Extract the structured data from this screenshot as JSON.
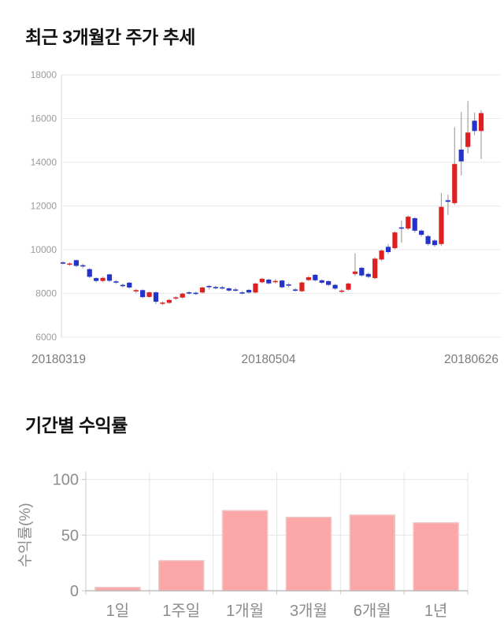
{
  "sections": {
    "price": {
      "title": "최근 3개월간 주가 추세"
    },
    "returns": {
      "title": "기간별 수익률"
    }
  },
  "chart_data": [
    {
      "id": "price-trend-candlestick",
      "type": "candlestick",
      "title": "최근 3개월간 주가 추세",
      "x_tick_labels": [
        "20180319",
        "20180504",
        "20180626"
      ],
      "y_ticks": [
        6000,
        8000,
        10000,
        12000,
        14000,
        16000,
        18000
      ],
      "ylim": [
        6000,
        18000
      ],
      "grid": "horizontal",
      "legend_position": "none",
      "colors": {
        "up": "#e02020",
        "down": "#2433cc",
        "wick": "#a3a3a3",
        "grid": "#e9e9e9",
        "axis": "#d9d9d9",
        "tick": "#9b9b9b",
        "xtick": "#7a7a7a"
      },
      "ohlc_order": [
        "open",
        "close",
        "low",
        "high"
      ],
      "candles": [
        [
          9420,
          9390,
          9330,
          9470
        ],
        [
          9310,
          9370,
          9260,
          9420
        ],
        [
          9520,
          9260,
          9200,
          9550
        ],
        [
          9290,
          9260,
          9150,
          9360
        ],
        [
          9110,
          8760,
          8700,
          9160
        ],
        [
          8700,
          8570,
          8500,
          8740
        ],
        [
          8570,
          8710,
          8510,
          8770
        ],
        [
          8870,
          8580,
          8520,
          8900
        ],
        [
          8550,
          8500,
          8430,
          8610
        ],
        [
          8390,
          8340,
          8270,
          8450
        ],
        [
          8490,
          8270,
          8210,
          8520
        ],
        [
          8090,
          8150,
          8020,
          8210
        ],
        [
          8150,
          7830,
          7780,
          8180
        ],
        [
          7840,
          8050,
          7800,
          8090
        ],
        [
          8050,
          7620,
          7510,
          8080
        ],
        [
          7540,
          7580,
          7460,
          7640
        ],
        [
          7570,
          7700,
          7520,
          7750
        ],
        [
          7770,
          7820,
          7710,
          7870
        ],
        [
          7810,
          7990,
          7760,
          8030
        ],
        [
          8050,
          8010,
          7950,
          8100
        ],
        [
          8030,
          7990,
          7930,
          8080
        ],
        [
          8040,
          8270,
          8000,
          8310
        ],
        [
          8340,
          8310,
          8180,
          8380
        ],
        [
          8290,
          8260,
          8190,
          8350
        ],
        [
          8280,
          8250,
          8180,
          8340
        ],
        [
          8230,
          8130,
          8080,
          8270
        ],
        [
          8180,
          8150,
          8080,
          8260
        ],
        [
          8050,
          8020,
          7960,
          8110
        ],
        [
          8160,
          8040,
          7990,
          8190
        ],
        [
          8040,
          8450,
          8000,
          8490
        ],
        [
          8510,
          8670,
          8460,
          8710
        ],
        [
          8630,
          8460,
          8410,
          8670
        ],
        [
          8540,
          8570,
          8440,
          8660
        ],
        [
          8590,
          8280,
          8230,
          8620
        ],
        [
          8410,
          8380,
          8280,
          8490
        ],
        [
          8180,
          8140,
          8080,
          8240
        ],
        [
          8100,
          8500,
          8060,
          8540
        ],
        [
          8610,
          8740,
          8560,
          8790
        ],
        [
          8850,
          8600,
          8550,
          8880
        ],
        [
          8600,
          8490,
          8430,
          8650
        ],
        [
          8560,
          8390,
          8330,
          8600
        ],
        [
          8390,
          8220,
          8160,
          8430
        ],
        [
          8080,
          8130,
          8020,
          8190
        ],
        [
          8170,
          8450,
          8120,
          8490
        ],
        [
          8890,
          9000,
          8810,
          9830
        ],
        [
          9170,
          8820,
          8760,
          9220
        ],
        [
          8890,
          8760,
          8700,
          8950
        ],
        [
          8700,
          9590,
          8650,
          9650
        ],
        [
          9550,
          9960,
          9480,
          10020
        ],
        [
          10130,
          9890,
          9800,
          10260
        ],
        [
          10070,
          10790,
          10010,
          10850
        ],
        [
          11020,
          10980,
          10320,
          11330
        ],
        [
          10970,
          11510,
          10900,
          11570
        ],
        [
          11440,
          10870,
          10790,
          11500
        ],
        [
          10870,
          10680,
          10600,
          10930
        ],
        [
          10620,
          10260,
          10190,
          10680
        ],
        [
          10420,
          10210,
          10130,
          10480
        ],
        [
          10260,
          11960,
          10170,
          12590
        ],
        [
          12260,
          12190,
          11590,
          12520
        ],
        [
          12130,
          13920,
          12050,
          15600
        ],
        [
          14580,
          14040,
          13400,
          16300
        ],
        [
          14700,
          15360,
          14400,
          16800
        ],
        [
          15900,
          15430,
          15240,
          16270
        ],
        [
          15430,
          16250,
          14150,
          16380
        ]
      ]
    },
    {
      "id": "period-returns-bar",
      "type": "bar",
      "title": "기간별 수익률",
      "ylabel": "수익률(%)",
      "categories": [
        "1일",
        "1주일",
        "1개월",
        "3개월",
        "6개월",
        "1년"
      ],
      "values": [
        3,
        27,
        72,
        66,
        68,
        61
      ],
      "y_ticks": [
        0,
        50,
        100
      ],
      "ylim": [
        0,
        100
      ],
      "grid": "both",
      "legend_position": "none",
      "colors": {
        "bar": "#fca7a7",
        "bar_edge": "#f0c6c6",
        "grid": "#e5e5e5",
        "axis": "#c9c9c9",
        "baseline": "#b5b5b5",
        "tick": "#8c8c8c"
      }
    }
  ]
}
